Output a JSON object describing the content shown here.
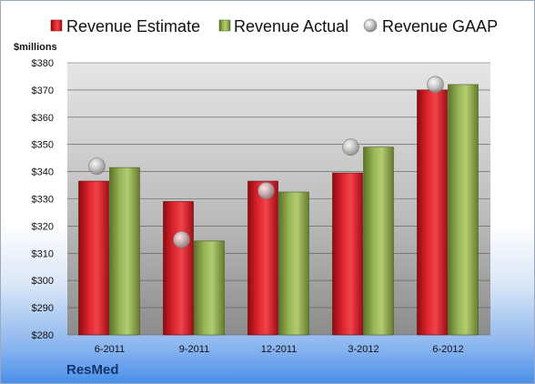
{
  "company": "ResMed",
  "chart_data": {
    "type": "bar",
    "unit_label": "$millions",
    "categories": [
      "6-2011",
      "9-2011",
      "12-2011",
      "3-2012",
      "6-2012"
    ],
    "series": [
      {
        "name": "Revenue Estimate",
        "kind": "bar",
        "color": "#c8141c",
        "values": [
          336.5,
          329.0,
          336.5,
          339.5,
          370.0
        ]
      },
      {
        "name": "Revenue Actual",
        "kind": "bar",
        "color": "#8fa84a",
        "values": [
          341.5,
          314.5,
          332.5,
          349.0,
          372.0
        ]
      },
      {
        "name": "Revenue GAAP",
        "kind": "marker",
        "color": "#b8b8b8",
        "values": [
          342.0,
          315.0,
          333.0,
          349.0,
          372.0
        ]
      }
    ],
    "ylim": [
      280,
      380
    ],
    "yticks": [
      280,
      290,
      300,
      310,
      320,
      330,
      340,
      350,
      360,
      370,
      380
    ],
    "ytick_labels": [
      "$280",
      "$290",
      "$300",
      "$310",
      "$320",
      "$330",
      "$340",
      "$350",
      "$360",
      "$370",
      "$380"
    ],
    "grid": true,
    "legend": "top"
  }
}
